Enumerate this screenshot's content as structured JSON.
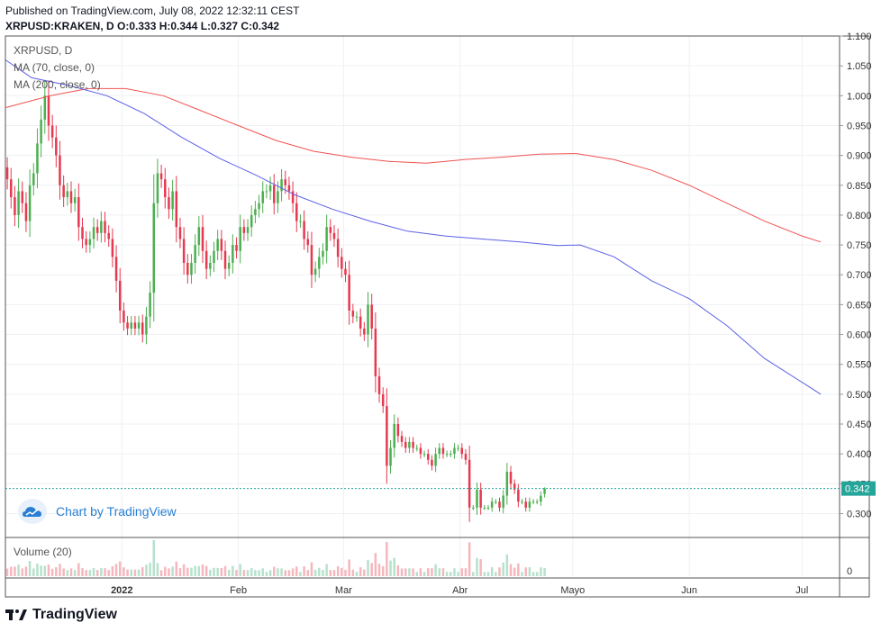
{
  "header": {
    "published": "Published on TradingView.com, July 08, 2022 12:32:11 CEST",
    "symbol_line": "XRPUSD:KRAKEN, D O:0.333 H:0.344 L:0.327 C:0.342"
  },
  "legend": {
    "title": "XRPUSD, D",
    "ma70": "MA (70, close, 0)",
    "ma200": "MA (200, close, 0)"
  },
  "volume_label": "Volume (20)",
  "watermark": {
    "text": "Chart by TradingView",
    "icon": "tradingview-cloud-icon"
  },
  "footer": {
    "text": "TradingView",
    "icon": "tradingview-logo-icon"
  },
  "colors": {
    "up": "#26a69a",
    "down": "#ef5350",
    "up_candle": "#4caf50",
    "down_candle": "#e53950",
    "ma70": "#5b5fe6",
    "ma200": "#ef5350",
    "last_price_bg": "#26a69a"
  },
  "chart_data": {
    "type": "candlestick",
    "symbol": "XRPUSD:KRAKEN",
    "interval": "D",
    "ohlc_last": {
      "open": 0.333,
      "high": 0.344,
      "low": 0.327,
      "close": 0.342
    },
    "last_price_label": "0.342",
    "ylim": [
      0.26,
      1.1
    ],
    "y_ticks": [
      "1.100",
      "1.050",
      "1.000",
      "0.950",
      "0.900",
      "0.850",
      "0.800",
      "0.750",
      "0.700",
      "0.650",
      "0.600",
      "0.550",
      "0.500",
      "0.450",
      "0.400",
      "0.350",
      "0.300"
    ],
    "volume_tick": "0",
    "x_labels": [
      {
        "label": "2022",
        "day": 14
      },
      {
        "label": "Feb",
        "day": 45
      },
      {
        "label": "Mar",
        "day": 73
      },
      {
        "label": "Abr",
        "day": 104
      },
      {
        "label": "Mayo",
        "day": 134
      },
      {
        "label": "Jun",
        "day": 165
      },
      {
        "label": "Jul",
        "day": 195
      }
    ],
    "start_day": -17,
    "end_day": 205,
    "close": [
      0.86,
      0.83,
      0.8,
      0.84,
      0.82,
      0.79,
      0.85,
      0.87,
      0.92,
      0.96,
      1.0,
      0.95,
      0.93,
      0.9,
      0.85,
      0.83,
      0.84,
      0.82,
      0.83,
      0.78,
      0.76,
      0.75,
      0.76,
      0.78,
      0.77,
      0.79,
      0.77,
      0.76,
      0.73,
      0.69,
      0.64,
      0.62,
      0.61,
      0.62,
      0.61,
      0.62,
      0.6,
      0.63,
      0.67,
      0.82,
      0.87,
      0.86,
      0.83,
      0.81,
      0.84,
      0.78,
      0.76,
      0.72,
      0.7,
      0.72,
      0.75,
      0.78,
      0.74,
      0.71,
      0.72,
      0.74,
      0.76,
      0.74,
      0.71,
      0.72,
      0.75,
      0.74,
      0.78,
      0.77,
      0.78,
      0.8,
      0.81,
      0.82,
      0.84,
      0.84,
      0.85,
      0.82,
      0.84,
      0.86,
      0.85,
      0.84,
      0.82,
      0.79,
      0.79,
      0.76,
      0.75,
      0.7,
      0.71,
      0.73,
      0.74,
      0.78,
      0.77,
      0.76,
      0.73,
      0.71,
      0.7,
      0.64,
      0.63,
      0.63,
      0.61,
      0.6,
      0.65,
      0.61,
      0.53,
      0.5,
      0.48,
      0.38,
      0.41,
      0.45,
      0.43,
      0.42,
      0.41,
      0.42,
      0.41,
      0.41,
      0.4,
      0.4,
      0.39,
      0.38,
      0.4,
      0.41,
      0.4,
      0.4,
      0.4,
      0.41,
      0.41,
      0.4,
      0.39,
      0.31,
      0.31,
      0.34,
      0.31,
      0.31,
      0.31,
      0.32,
      0.32,
      0.31,
      0.33,
      0.37,
      0.35,
      0.34,
      0.32,
      0.32,
      0.31,
      0.32,
      0.32,
      0.32,
      0.33,
      0.342
    ],
    "ma70": [
      {
        "day": -17,
        "value": 1.06
      },
      {
        "day": -10,
        "value": 1.03
      },
      {
        "day": 0,
        "value": 1.017
      },
      {
        "day": 10,
        "value": 1.0
      },
      {
        "day": 20,
        "value": 0.97
      },
      {
        "day": 30,
        "value": 0.93
      },
      {
        "day": 40,
        "value": 0.895
      },
      {
        "day": 50,
        "value": 0.866
      },
      {
        "day": 60,
        "value": 0.834
      },
      {
        "day": 70,
        "value": 0.81
      },
      {
        "day": 80,
        "value": 0.79
      },
      {
        "day": 90,
        "value": 0.773
      },
      {
        "day": 100,
        "value": 0.765
      },
      {
        "day": 110,
        "value": 0.76
      },
      {
        "day": 120,
        "value": 0.755
      },
      {
        "day": 130,
        "value": 0.749
      },
      {
        "day": 136,
        "value": 0.75
      },
      {
        "day": 145,
        "value": 0.73
      },
      {
        "day": 155,
        "value": 0.69
      },
      {
        "day": 165,
        "value": 0.66
      },
      {
        "day": 175,
        "value": 0.615
      },
      {
        "day": 185,
        "value": 0.56
      },
      {
        "day": 195,
        "value": 0.52
      },
      {
        "day": 200,
        "value": 0.5
      }
    ],
    "ma200": [
      {
        "day": -17,
        "value": 0.98
      },
      {
        "day": -5,
        "value": 1.0
      },
      {
        "day": 5,
        "value": 1.012
      },
      {
        "day": 15,
        "value": 1.012
      },
      {
        "day": 25,
        "value": 1.0
      },
      {
        "day": 35,
        "value": 0.975
      },
      {
        "day": 45,
        "value": 0.95
      },
      {
        "day": 55,
        "value": 0.925
      },
      {
        "day": 65,
        "value": 0.907
      },
      {
        "day": 75,
        "value": 0.897
      },
      {
        "day": 85,
        "value": 0.89
      },
      {
        "day": 95,
        "value": 0.887
      },
      {
        "day": 105,
        "value": 0.893
      },
      {
        "day": 115,
        "value": 0.897
      },
      {
        "day": 125,
        "value": 0.902
      },
      {
        "day": 135,
        "value": 0.903
      },
      {
        "day": 145,
        "value": 0.893
      },
      {
        "day": 155,
        "value": 0.875
      },
      {
        "day": 165,
        "value": 0.85
      },
      {
        "day": 175,
        "value": 0.82
      },
      {
        "day": 185,
        "value": 0.79
      },
      {
        "day": 195,
        "value": 0.765
      },
      {
        "day": 200,
        "value": 0.755
      }
    ]
  }
}
